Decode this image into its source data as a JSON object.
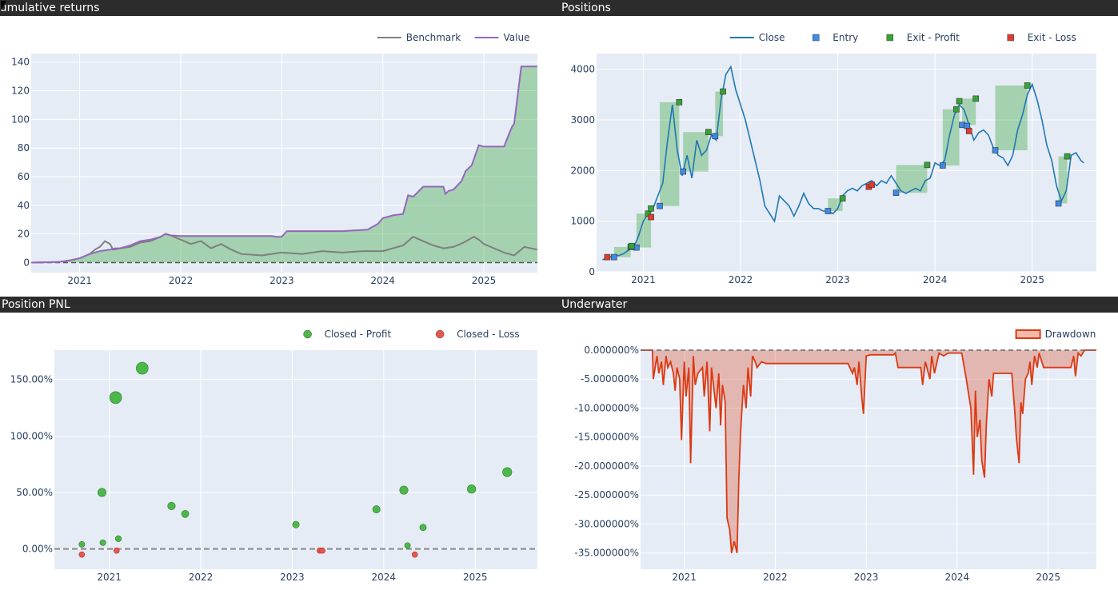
{
  "panels": {
    "cum": "Cumulative returns",
    "pos": "Positions",
    "pnl": "Position PNL",
    "uw": "Underwater"
  },
  "colors": {
    "panel_bg": "#e5ecf6",
    "value": "#9467bd",
    "benchmark": "#7f7f7f",
    "close": "#1f77b4",
    "entry": "#1f77b4",
    "profit": "#2ca02c",
    "loss": "#d62728",
    "drawdown": "#dc3912",
    "profit_band": "rgba(44,160,44,0.35)"
  },
  "chart_data": [
    {
      "id": "cum",
      "type": "line",
      "legend": [
        "Benchmark",
        "Value"
      ],
      "legend_placement": "top-right",
      "grid": true,
      "x_ticks": [
        "2021",
        "2022",
        "2023",
        "2024",
        "2025"
      ],
      "y_ticks": [
        0,
        20,
        40,
        60,
        80,
        100,
        120,
        140
      ],
      "xlim": [
        2020.52,
        2025.53
      ],
      "ylim": [
        -7,
        146
      ],
      "baseline": 0,
      "series": [
        {
          "name": "Value",
          "x": [
            2020.52,
            2020.8,
            2020.9,
            2021.0,
            2021.1,
            2021.2,
            2021.3,
            2021.35,
            2021.4,
            2021.5,
            2021.6,
            2021.7,
            2021.8,
            2021.85,
            2021.9,
            2022.0,
            2022.3,
            2022.6,
            2022.9,
            2022.95,
            2023.0,
            2023.05,
            2023.3,
            2023.6,
            2023.85,
            2023.95,
            2024.0,
            2024.1,
            2024.2,
            2024.25,
            2024.3,
            2024.4,
            2024.5,
            2024.6,
            2024.62,
            2024.65,
            2024.7,
            2024.78,
            2024.82,
            2024.88,
            2024.95,
            2025.0,
            2025.2,
            2025.25,
            2025.28,
            2025.3,
            2025.37,
            2025.53
          ],
          "y": [
            0,
            0.5,
            1.5,
            3,
            6,
            8,
            9,
            10,
            10,
            12,
            15,
            16,
            18,
            20,
            19,
            18.5,
            18.5,
            18.5,
            18.5,
            18,
            18,
            22,
            22,
            22,
            23,
            27,
            31,
            33,
            34,
            47,
            46,
            53,
            53,
            53,
            48,
            50,
            51,
            57,
            64,
            68,
            82,
            81,
            81,
            90,
            95,
            97,
            137,
            137
          ]
        },
        {
          "name": "Benchmark",
          "x": [
            2020.52,
            2020.8,
            2020.9,
            2021.0,
            2021.1,
            2021.15,
            2021.2,
            2021.25,
            2021.3,
            2021.33,
            2021.4,
            2021.5,
            2021.6,
            2021.7,
            2021.8,
            2021.85,
            2021.9,
            2022.0,
            2022.1,
            2022.2,
            2022.3,
            2022.4,
            2022.5,
            2022.6,
            2022.8,
            2023.0,
            2023.2,
            2023.4,
            2023.6,
            2023.8,
            2024.0,
            2024.2,
            2024.3,
            2024.4,
            2024.5,
            2024.6,
            2024.7,
            2024.8,
            2024.9,
            2024.95,
            2025.0,
            2025.1,
            2025.2,
            2025.3,
            2025.4,
            2025.53
          ],
          "y": [
            0,
            0.5,
            1.5,
            3,
            6,
            9,
            11,
            15,
            13,
            9,
            10,
            11,
            14,
            15,
            18,
            20,
            19,
            16,
            13,
            15,
            10,
            13,
            9,
            6,
            5,
            7,
            6,
            8,
            7,
            8,
            8,
            12,
            18,
            15,
            12,
            10,
            11,
            14,
            18,
            16,
            13,
            10,
            7,
            5,
            11,
            9
          ]
        }
      ]
    },
    {
      "id": "pos",
      "type": "line",
      "legend": [
        "Close",
        "Entry",
        "Exit - Profit",
        "Exit - Loss"
      ],
      "legend_placement": "top-right",
      "grid": true,
      "x_ticks": [
        "2021",
        "2022",
        "2023",
        "2024",
        "2025"
      ],
      "y_ticks": [
        0,
        1000,
        2000,
        3000,
        4000
      ],
      "xlim": [
        2020.52,
        2025.66
      ],
      "ylim": [
        0,
        4310
      ],
      "close": {
        "x": [
          2020.58,
          2020.65,
          2020.7,
          2020.75,
          2020.8,
          2020.85,
          2020.9,
          2020.95,
          2021.0,
          2021.05,
          2021.1,
          2021.15,
          2021.2,
          2021.25,
          2021.3,
          2021.35,
          2021.4,
          2021.45,
          2021.5,
          2021.55,
          2021.6,
          2021.65,
          2021.7,
          2021.75,
          2021.8,
          2021.85,
          2021.9,
          2021.95,
          2022.0,
          2022.05,
          2022.1,
          2022.15,
          2022.2,
          2022.25,
          2022.3,
          2022.35,
          2022.4,
          2022.45,
          2022.5,
          2022.55,
          2022.6,
          2022.65,
          2022.7,
          2022.75,
          2022.8,
          2022.85,
          2022.9,
          2022.95,
          2023.0,
          2023.05,
          2023.1,
          2023.15,
          2023.2,
          2023.25,
          2023.3,
          2023.35,
          2023.4,
          2023.45,
          2023.5,
          2023.55,
          2023.6,
          2023.65,
          2023.7,
          2023.75,
          2023.8,
          2023.85,
          2023.9,
          2023.95,
          2024.0,
          2024.05,
          2024.1,
          2024.15,
          2024.2,
          2024.25,
          2024.3,
          2024.35,
          2024.4,
          2024.45,
          2024.5,
          2024.55,
          2024.6,
          2024.65,
          2024.7,
          2024.75,
          2024.8,
          2024.85,
          2024.9,
          2024.95,
          2025.0,
          2025.05,
          2025.1,
          2025.15,
          2025.2,
          2025.25,
          2025.3,
          2025.35,
          2025.4,
          2025.45,
          2025.5,
          2025.53
        ],
        "y": [
          240,
          280,
          330,
          320,
          360,
          430,
          480,
          700,
          1000,
          1150,
          1250,
          1500,
          1750,
          2600,
          3300,
          2400,
          1900,
          2300,
          1850,
          2600,
          2300,
          2400,
          2700,
          2600,
          3400,
          3900,
          4050,
          3600,
          3300,
          3000,
          2600,
          2200,
          1800,
          1300,
          1150,
          1000,
          1500,
          1400,
          1300,
          1100,
          1300,
          1550,
          1350,
          1250,
          1250,
          1200,
          1200,
          1150,
          1250,
          1500,
          1600,
          1650,
          1600,
          1700,
          1750,
          1800,
          1700,
          1800,
          1750,
          1900,
          1750,
          1600,
          1550,
          1600,
          1650,
          1600,
          1800,
          1850,
          2150,
          2100,
          2200,
          2700,
          3100,
          3300,
          3200,
          2900,
          2600,
          2750,
          2800,
          2700,
          2450,
          2300,
          2250,
          2100,
          2300,
          2800,
          3100,
          3500,
          3700,
          3400,
          3000,
          2500,
          2200,
          1700,
          1400,
          1600,
          2300,
          2350,
          2200,
          2150
        ]
      },
      "entries": [
        [
          2020.7,
          290
        ],
        [
          2020.93,
          480
        ],
        [
          2021.17,
          1300
        ],
        [
          2021.41,
          1980
        ],
        [
          2021.74,
          2680
        ],
        [
          2022.9,
          1200
        ],
        [
          2023.6,
          1560
        ],
        [
          2024.08,
          2100
        ],
        [
          2024.28,
          2900
        ],
        [
          2024.33,
          2880
        ],
        [
          2024.62,
          2400
        ],
        [
          2025.27,
          1350
        ]
      ],
      "exits_profit": [
        [
          2020.87,
          490
        ],
        [
          2020.88,
          510
        ],
        [
          2021.05,
          1150
        ],
        [
          2021.08,
          1250
        ],
        [
          2021.37,
          3350
        ],
        [
          2021.67,
          2760
        ],
        [
          2021.82,
          3560
        ],
        [
          2023.05,
          1450
        ],
        [
          2023.92,
          2110
        ],
        [
          2024.22,
          3210
        ],
        [
          2024.25,
          3370
        ],
        [
          2024.42,
          3420
        ],
        [
          2024.95,
          3680
        ],
        [
          2025.36,
          2280
        ]
      ],
      "exits_loss": [
        [
          2020.63,
          290
        ],
        [
          2021.08,
          1080
        ],
        [
          2023.32,
          1680
        ],
        [
          2023.35,
          1720
        ],
        [
          2024.35,
          2780
        ]
      ],
      "profit_bands": [
        [
          2020.7,
          2020.87,
          290,
          490
        ],
        [
          2020.93,
          2021.08,
          480,
          1150
        ],
        [
          2021.17,
          2021.37,
          1300,
          3350
        ],
        [
          2021.41,
          2021.67,
          1980,
          2760
        ],
        [
          2021.74,
          2021.82,
          2680,
          3560
        ],
        [
          2022.9,
          2023.05,
          1200,
          1450
        ],
        [
          2023.6,
          2023.92,
          1560,
          2110
        ],
        [
          2024.08,
          2024.25,
          2100,
          3210
        ],
        [
          2024.28,
          2024.42,
          2900,
          3420
        ],
        [
          2024.62,
          2024.95,
          2400,
          3680
        ],
        [
          2025.27,
          2025.36,
          1350,
          2280
        ]
      ]
    },
    {
      "id": "pnl",
      "type": "scatter",
      "legend": [
        "Closed - Profit",
        "Closed - Loss"
      ],
      "legend_placement": "top-right",
      "grid": true,
      "x_ticks": [
        "2021",
        "2022",
        "2023",
        "2024",
        "2025"
      ],
      "y_ticks": [
        "0.00%",
        "50.00%",
        "100.00%",
        "150.00%"
      ],
      "y_tick_values": [
        0,
        50,
        100,
        150
      ],
      "xlim": [
        2020.4,
        2025.68
      ],
      "ylim": [
        -18,
        176
      ],
      "baseline": 0,
      "profit": [
        [
          2020.7,
          4
        ],
        [
          2020.92,
          50
        ],
        [
          2020.93,
          5.5
        ],
        [
          2021.07,
          134
        ],
        [
          2021.1,
          9
        ],
        [
          2021.36,
          160
        ],
        [
          2021.68,
          38
        ],
        [
          2021.83,
          31
        ],
        [
          2023.04,
          21.5
        ],
        [
          2023.92,
          35
        ],
        [
          2024.22,
          52
        ],
        [
          2024.26,
          3
        ],
        [
          2024.43,
          19
        ],
        [
          2024.96,
          53
        ],
        [
          2025.35,
          68
        ]
      ],
      "loss": [
        [
          2020.7,
          -5
        ],
        [
          2021.08,
          -1.5
        ],
        [
          2023.3,
          -1.5
        ],
        [
          2023.33,
          -1.5
        ],
        [
          2024.34,
          -5
        ]
      ]
    },
    {
      "id": "uw",
      "type": "area",
      "legend": [
        "Drawdown"
      ],
      "legend_placement": "top-right",
      "grid": true,
      "x_ticks": [
        "2021",
        "2022",
        "2023",
        "2024",
        "2025"
      ],
      "y_ticks": [
        "0.000000%",
        "-5.000000%",
        "-10.000000%",
        "-15.000000%",
        "-20.000000%",
        "-25.000000%",
        "-30.000000%",
        "-35.000000%"
      ],
      "y_tick_values": [
        0,
        -5,
        -10,
        -15,
        -20,
        -25,
        -30,
        -35
      ],
      "xlim": [
        2020.52,
        2025.53
      ],
      "ylim": [
        -37.8,
        0
      ],
      "baseline": 0,
      "series": [
        {
          "name": "Drawdown",
          "x": [
            2020.52,
            2020.65,
            2020.66,
            2020.7,
            2020.72,
            2020.75,
            2020.77,
            2020.8,
            2020.82,
            2020.85,
            2020.88,
            2020.9,
            2020.92,
            2020.95,
            2020.97,
            2021.0,
            2021.02,
            2021.05,
            2021.07,
            2021.1,
            2021.12,
            2021.15,
            2021.2,
            2021.22,
            2021.25,
            2021.28,
            2021.3,
            2021.35,
            2021.38,
            2021.4,
            2021.42,
            2021.45,
            2021.47,
            2021.5,
            2021.52,
            2021.55,
            2021.58,
            2021.6,
            2021.62,
            2021.65,
            2021.68,
            2021.7,
            2021.73,
            2021.75,
            2021.78,
            2021.8,
            2021.85,
            2021.9,
            2022.3,
            2022.8,
            2022.85,
            2022.87,
            2022.9,
            2022.92,
            2022.95,
            2022.97,
            2023.0,
            2023.05,
            2023.3,
            2023.32,
            2023.35,
            2023.6,
            2023.62,
            2023.65,
            2023.7,
            2023.72,
            2023.75,
            2023.8,
            2023.85,
            2023.9,
            2024.05,
            2024.1,
            2024.15,
            2024.18,
            2024.2,
            2024.22,
            2024.25,
            2024.27,
            2024.3,
            2024.32,
            2024.35,
            2024.38,
            2024.4,
            2024.45,
            2024.6,
            2024.63,
            2024.65,
            2024.68,
            2024.7,
            2024.72,
            2024.75,
            2024.78,
            2024.8,
            2024.82,
            2024.85,
            2024.88,
            2024.9,
            2024.95,
            2025.0,
            2025.25,
            2025.28,
            2025.3,
            2025.33,
            2025.36,
            2025.4,
            2025.53
          ],
          "y": [
            0,
            0,
            -5,
            -1,
            -4,
            -2,
            -6,
            -1,
            -3,
            -2,
            -4,
            -7,
            -3,
            -5,
            -15.5,
            -2,
            -8,
            -3,
            -19.5,
            -1,
            -6,
            -4,
            -3,
            -8,
            -2,
            -14,
            -3,
            -10,
            -4,
            -13,
            -6,
            -9,
            -29,
            -31,
            -35,
            -33,
            -35,
            -22,
            -14,
            -6,
            -10,
            -3,
            -8,
            -1,
            -2,
            -3,
            -2,
            -2.3,
            -2.3,
            -2.3,
            -4,
            -3,
            -6,
            -2,
            -8,
            -11,
            -1,
            -0.8,
            -0.8,
            -0.5,
            -3,
            -3,
            -6,
            -2,
            -5,
            -1,
            -4,
            -0.5,
            -1,
            -0.5,
            -0.5,
            -5,
            -10,
            -21.5,
            -7,
            -15,
            -12,
            -19,
            -22,
            -13,
            -5,
            -8,
            -4,
            -4,
            -4,
            -10,
            -15,
            -19.5,
            -9,
            -11,
            -5,
            -4,
            -2,
            -6,
            -1,
            -3,
            -0.5,
            -3,
            -3,
            -3,
            -1,
            -4.5,
            -0.5,
            -1,
            0,
            0
          ]
        }
      ]
    }
  ]
}
